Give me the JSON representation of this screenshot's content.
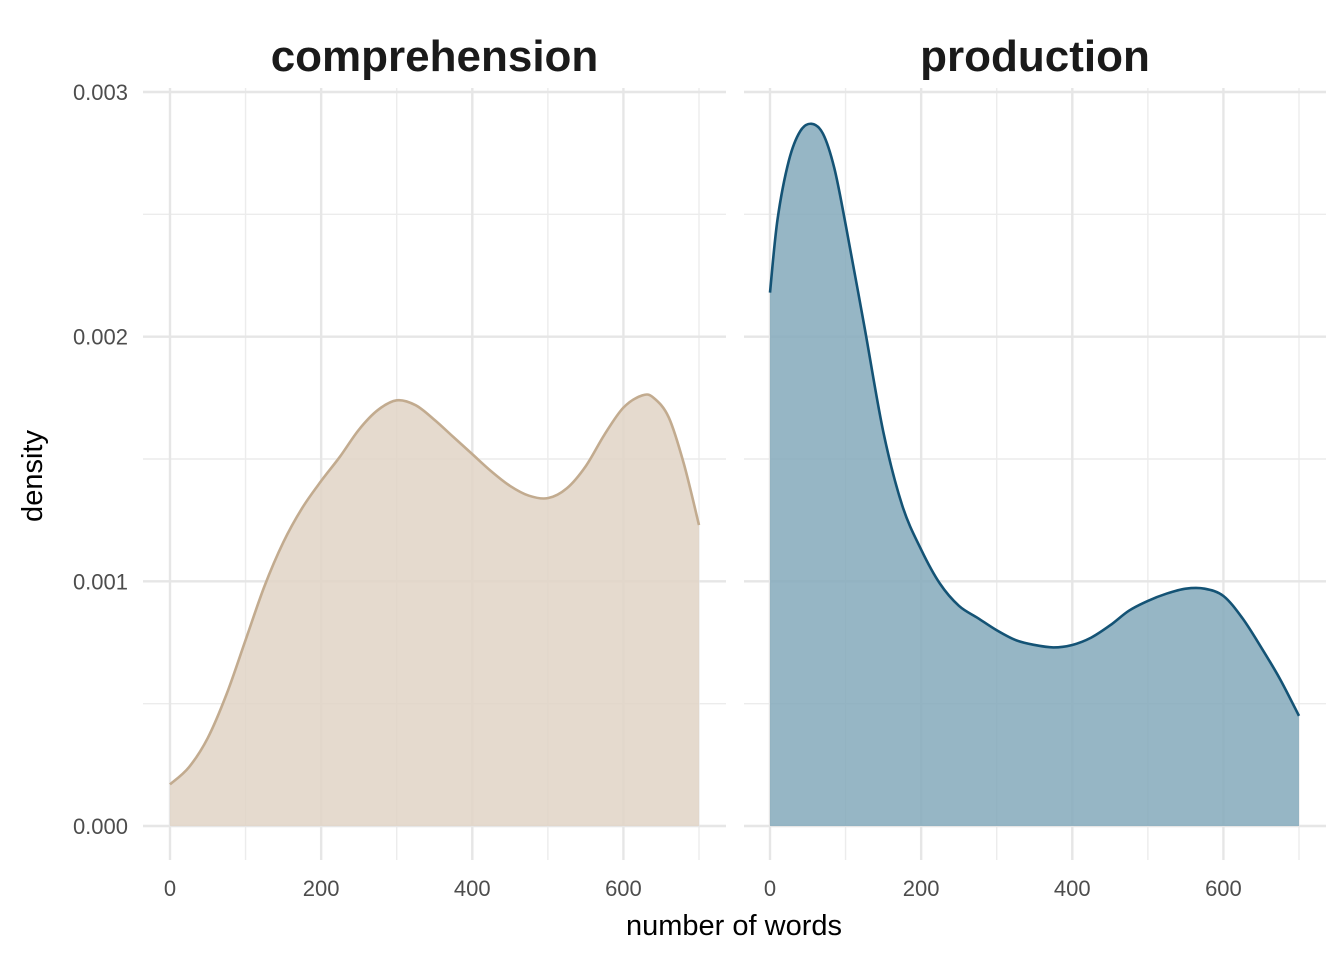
{
  "chart_data": {
    "type": "area",
    "xlabel": "number of words",
    "ylabel": "density",
    "xlim": [
      0,
      700
    ],
    "ylim": [
      0,
      0.003
    ],
    "x_ticks": [
      0,
      200,
      400,
      600
    ],
    "x_tick_labels": [
      "0",
      "200",
      "400",
      "600"
    ],
    "y_ticks": [
      0,
      0.001,
      0.002,
      0.003
    ],
    "y_tick_labels": [
      "0.000",
      "0.001",
      "0.002",
      "0.003"
    ],
    "grid": true,
    "panels": [
      {
        "title": "comprehension",
        "fill_color": "#e0d3c6",
        "line_color": "#c2ab8f",
        "x": [
          0,
          25,
          50,
          75,
          100,
          125,
          150,
          175,
          200,
          225,
          250,
          275,
          300,
          325,
          350,
          375,
          400,
          425,
          450,
          475,
          500,
          525,
          550,
          575,
          600,
          625,
          640,
          660,
          680,
          700
        ],
        "y": [
          0.00017,
          0.00024,
          0.00036,
          0.00054,
          0.00076,
          0.00098,
          0.00116,
          0.0013,
          0.00141,
          0.00151,
          0.00162,
          0.0017,
          0.00174,
          0.00172,
          0.00166,
          0.00159,
          0.00152,
          0.00145,
          0.00139,
          0.00135,
          0.00134,
          0.00138,
          0.00147,
          0.0016,
          0.00171,
          0.00176,
          0.00175,
          0.00167,
          0.00148,
          0.00123
        ]
      },
      {
        "title": "production",
        "fill_color": "#84a9bb",
        "line_color": "#145375",
        "x": [
          0,
          10,
          25,
          40,
          55,
          70,
          85,
          100,
          125,
          150,
          175,
          200,
          225,
          250,
          275,
          300,
          325,
          350,
          375,
          400,
          425,
          450,
          475,
          500,
          525,
          550,
          575,
          600,
          625,
          650,
          675,
          700
        ],
        "y": [
          0.00218,
          0.00248,
          0.00272,
          0.00284,
          0.00287,
          0.00283,
          0.00269,
          0.00246,
          0.00204,
          0.00161,
          0.00131,
          0.00113,
          0.00099,
          0.0009,
          0.00085,
          0.0008,
          0.00076,
          0.00074,
          0.00073,
          0.00074,
          0.00077,
          0.00082,
          0.00088,
          0.00092,
          0.00095,
          0.00097,
          0.00097,
          0.00094,
          0.00085,
          0.00073,
          0.0006,
          0.00045
        ]
      }
    ]
  }
}
